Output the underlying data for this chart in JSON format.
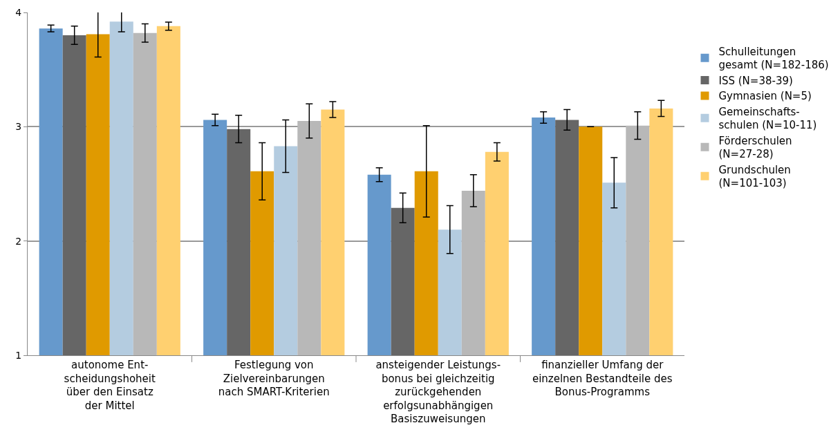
{
  "chart_data": {
    "type": "bar",
    "categories": [
      "autonome Ent-\nscheidungshoheit\nüber den Einsatz\nder Mittel",
      "Festlegung von\nZielvereinbarungen\nnach SMART-Kriterien",
      "ansteigender Leistungs-\nbonus bei gleichzeitig\nzurückgehenden\nerfolgsunabhängigen\nBasiszuweisungen",
      "finanzieller Umfang der\neinzelnen Bestandteile des\nBonus-Programms"
    ],
    "series": [
      {
        "name": "Schulleitungen\ngesamt (N=182-186)",
        "color": "#6699cc",
        "values": [
          3.86,
          3.06,
          2.58,
          3.08
        ],
        "errors": [
          0.03,
          0.05,
          0.06,
          0.05
        ]
      },
      {
        "name": "ISS (N=38-39)",
        "color": "#666666",
        "values": [
          3.8,
          2.98,
          2.29,
          3.06
        ],
        "errors": [
          0.08,
          0.12,
          0.13,
          0.09
        ]
      },
      {
        "name": "Gymnasien (N=5)",
        "color": "#e09a00",
        "values": [
          3.81,
          2.61,
          2.61,
          3.0
        ],
        "errors": [
          0.2,
          0.25,
          0.4,
          0
        ]
      },
      {
        "name": "Gemeinschafts-\nschulen (N=10-11)",
        "color": "#b4cce0",
        "values": [
          3.92,
          2.83,
          2.1,
          2.51
        ],
        "errors": [
          0.09,
          0.23,
          0.21,
          0.22
        ]
      },
      {
        "name": "Förderschulen\n(N=27-28)",
        "color": "#b8b8b8",
        "values": [
          3.82,
          3.05,
          2.44,
          3.01
        ],
        "errors": [
          0.08,
          0.15,
          0.14,
          0.12
        ]
      },
      {
        "name": "Grundschulen\n(N=101-103)",
        "color": "#ffd070",
        "values": [
          3.88,
          3.15,
          2.78,
          3.16
        ],
        "errors": [
          0.035,
          0.07,
          0.08,
          0.07
        ]
      }
    ],
    "ylim": [
      1,
      4
    ],
    "yticks": [
      1,
      2,
      3,
      4
    ],
    "grid": "y",
    "legend": "right"
  }
}
